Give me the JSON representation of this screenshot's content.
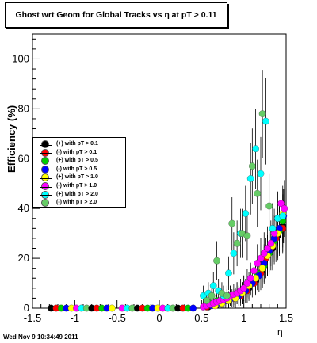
{
  "chart_data": {
    "type": "scatter",
    "title": "Ghost wrt Geom for Global Tracks vs    η at pT > 0.11",
    "xlabel": "η",
    "ylabel": "Efficiency (%)",
    "xlim": [
      -1.5,
      1.5
    ],
    "ylim": [
      0,
      110
    ],
    "x_ticks": [
      "-1.5",
      "-1",
      "-0.5",
      "0",
      "0.5",
      "1",
      "1.5"
    ],
    "y_ticks": [
      "0",
      "20",
      "40",
      "60",
      "80",
      "100"
    ],
    "grid": false,
    "legend_position": "left-middle",
    "zero_x": [
      -1.28,
      -1.22,
      -1.16,
      -1.1,
      -1.04,
      -0.98,
      -0.92,
      -0.86,
      -0.8,
      -0.74,
      -0.68,
      -0.62,
      -0.56,
      -0.44,
      -0.38,
      -0.32,
      -0.26,
      -0.2,
      -0.14,
      -0.08,
      -0.02,
      0.04,
      0.1,
      0.16,
      0.22,
      0.28,
      0.34,
      0.4
    ],
    "series": [
      {
        "name": "(+) with pT > 0.1",
        "color": "#000000",
        "points": [
          [
            0.58,
            0.5
          ],
          [
            0.66,
            1.5
          ],
          [
            0.74,
            2.5
          ],
          [
            0.82,
            3.5
          ],
          [
            0.9,
            4.5
          ],
          [
            0.98,
            6
          ],
          [
            1.06,
            8
          ],
          [
            1.14,
            11
          ],
          [
            1.22,
            15
          ],
          [
            1.28,
            21
          ],
          [
            1.34,
            24
          ],
          [
            1.4,
            29
          ],
          [
            1.46,
            33
          ]
        ]
      },
      {
        "name": "(-) with pT > 0.1",
        "color": "#ff0000",
        "points": [
          [
            0.56,
            0.5
          ],
          [
            0.64,
            1.5
          ],
          [
            0.72,
            2.5
          ],
          [
            0.8,
            3
          ],
          [
            0.88,
            4
          ],
          [
            0.96,
            5
          ],
          [
            1.04,
            7
          ],
          [
            1.12,
            10
          ],
          [
            1.2,
            14
          ],
          [
            1.26,
            20
          ],
          [
            1.32,
            24
          ],
          [
            1.38,
            28
          ],
          [
            1.46,
            32
          ]
        ]
      },
      {
        "name": "(+) with pT > 0.5",
        "color": "#00cc00",
        "points": [
          [
            0.6,
            2
          ],
          [
            0.68,
            3
          ],
          [
            0.76,
            4
          ],
          [
            0.84,
            5
          ],
          [
            0.92,
            6
          ],
          [
            1.0,
            8
          ],
          [
            1.08,
            11
          ],
          [
            1.16,
            14
          ],
          [
            1.24,
            17
          ],
          [
            1.3,
            22
          ],
          [
            1.36,
            27
          ],
          [
            1.42,
            31
          ],
          [
            1.46,
            35
          ]
        ]
      },
      {
        "name": "(-) with pT > 0.5",
        "color": "#0000ff",
        "points": [
          [
            0.62,
            1
          ],
          [
            0.7,
            2
          ],
          [
            0.78,
            3
          ],
          [
            0.86,
            4
          ],
          [
            0.94,
            5
          ],
          [
            1.02,
            7
          ],
          [
            1.1,
            10
          ],
          [
            1.18,
            13
          ],
          [
            1.24,
            18
          ],
          [
            1.3,
            23
          ],
          [
            1.36,
            28
          ],
          [
            1.42,
            32
          ],
          [
            1.47,
            37
          ]
        ]
      },
      {
        "name": "(+) with pT > 1.0",
        "color": "#ffff00",
        "points": [
          [
            0.66,
            1
          ],
          [
            0.74,
            2
          ],
          [
            0.82,
            3
          ],
          [
            0.9,
            4
          ],
          [
            0.98,
            6
          ],
          [
            1.06,
            9
          ],
          [
            1.14,
            12
          ],
          [
            1.22,
            16
          ],
          [
            1.28,
            21
          ],
          [
            1.34,
            25
          ],
          [
            1.4,
            30
          ],
          [
            1.46,
            38
          ]
        ]
      },
      {
        "name": "(-) with pT > 1.0",
        "color": "#ff00ff",
        "points": [
          [
            0.52,
            0.5
          ],
          [
            0.56,
            1
          ],
          [
            0.6,
            1.5
          ],
          [
            0.64,
            2
          ],
          [
            0.68,
            2.5
          ],
          [
            0.72,
            3
          ],
          [
            0.76,
            3.5
          ],
          [
            0.8,
            4
          ],
          [
            0.84,
            5
          ],
          [
            0.88,
            5.5
          ],
          [
            0.92,
            6
          ],
          [
            0.96,
            7
          ],
          [
            1.0,
            8
          ],
          [
            1.04,
            10
          ],
          [
            1.08,
            12
          ],
          [
            1.12,
            15
          ],
          [
            1.16,
            18
          ],
          [
            1.2,
            20
          ],
          [
            1.24,
            22
          ],
          [
            1.28,
            24
          ],
          [
            1.32,
            26
          ],
          [
            1.36,
            30
          ],
          [
            1.4,
            36
          ],
          [
            1.44,
            42
          ],
          [
            1.48,
            40
          ]
        ]
      },
      {
        "name": "(+) with pT > 2.0",
        "color": "#00ffff",
        "points": [
          [
            0.52,
            5
          ],
          [
            0.58,
            6
          ],
          [
            0.64,
            9
          ],
          [
            0.7,
            7
          ],
          [
            0.76,
            5
          ],
          [
            0.82,
            14
          ],
          [
            0.88,
            22
          ],
          [
            0.96,
            30
          ],
          [
            1.02,
            38
          ],
          [
            1.08,
            52
          ],
          [
            1.14,
            64
          ],
          [
            1.2,
            54
          ],
          [
            1.26,
            75
          ],
          [
            1.34,
            32
          ],
          [
            1.4,
            36
          ],
          [
            1.46,
            37
          ]
        ]
      },
      {
        "name": "(-) with pT > 2.0",
        "color": "#66cc66",
        "points": [
          [
            0.56,
            3
          ],
          [
            0.62,
            5
          ],
          [
            0.68,
            19
          ],
          [
            0.74,
            6
          ],
          [
            0.8,
            5
          ],
          [
            0.86,
            34
          ],
          [
            0.92,
            26
          ],
          [
            0.98,
            30
          ],
          [
            1.04,
            29
          ],
          [
            1.1,
            57
          ],
          [
            1.16,
            46
          ],
          [
            1.22,
            78
          ],
          [
            1.3,
            41
          ]
        ]
      }
    ]
  },
  "timestamp": "Wed Nov  9 10:34:49 2011"
}
